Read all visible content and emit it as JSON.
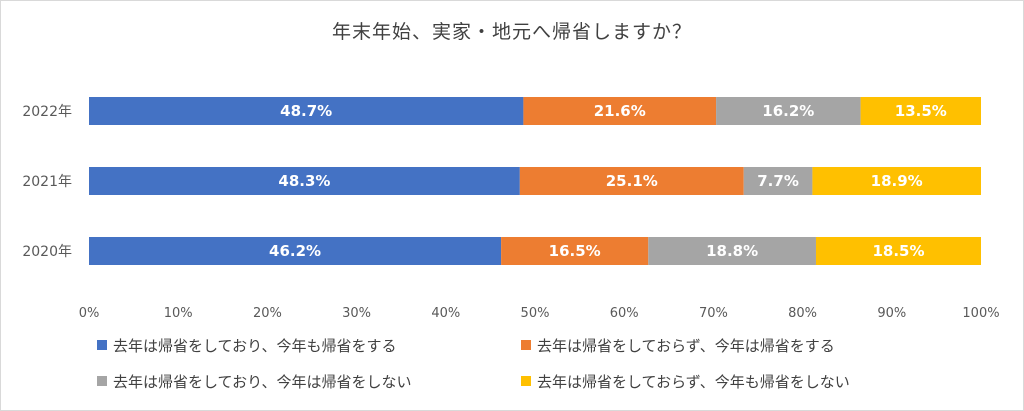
{
  "colors": {
    "series1": "#4472C4",
    "series2": "#ED7D31",
    "series3": "#A5A5A5",
    "series4": "#FFC000"
  },
  "chart_data": {
    "type": "bar",
    "orientation": "horizontal",
    "stacked": "percent",
    "title": "年末年始、実家・地元へ帰省しますか？",
    "categories": [
      "2022年",
      "2021年",
      "2020年"
    ],
    "series": [
      {
        "name": "去年は帰省をしており、今年も帰省をする",
        "values": [
          48.7,
          48.3,
          46.2
        ],
        "labels": [
          "48.7%",
          "48.3%",
          "46.2%"
        ]
      },
      {
        "name": "去年は帰省をしておらず、今年は帰省をする",
        "values": [
          21.6,
          25.1,
          16.5
        ],
        "labels": [
          "21.6%",
          "25.1%",
          "16.5%"
        ]
      },
      {
        "name": "去年は帰省をしており、今年は帰省をしない",
        "values": [
          16.2,
          7.7,
          18.8
        ],
        "labels": [
          "16.2%",
          "7.7%",
          "18.8%"
        ]
      },
      {
        "name": "去年は帰省をしておらず、今年も帰省をしない",
        "values": [
          13.5,
          18.9,
          18.5
        ],
        "labels": [
          "13.5%",
          "18.9%",
          "18.5%"
        ]
      }
    ],
    "xlim": [
      0,
      100
    ],
    "xticks": [
      "0%",
      "10%",
      "20%",
      "30%",
      "40%",
      "50%",
      "60%",
      "70%",
      "80%",
      "90%",
      "100%"
    ],
    "grid": false,
    "legend_position": "bottom"
  }
}
